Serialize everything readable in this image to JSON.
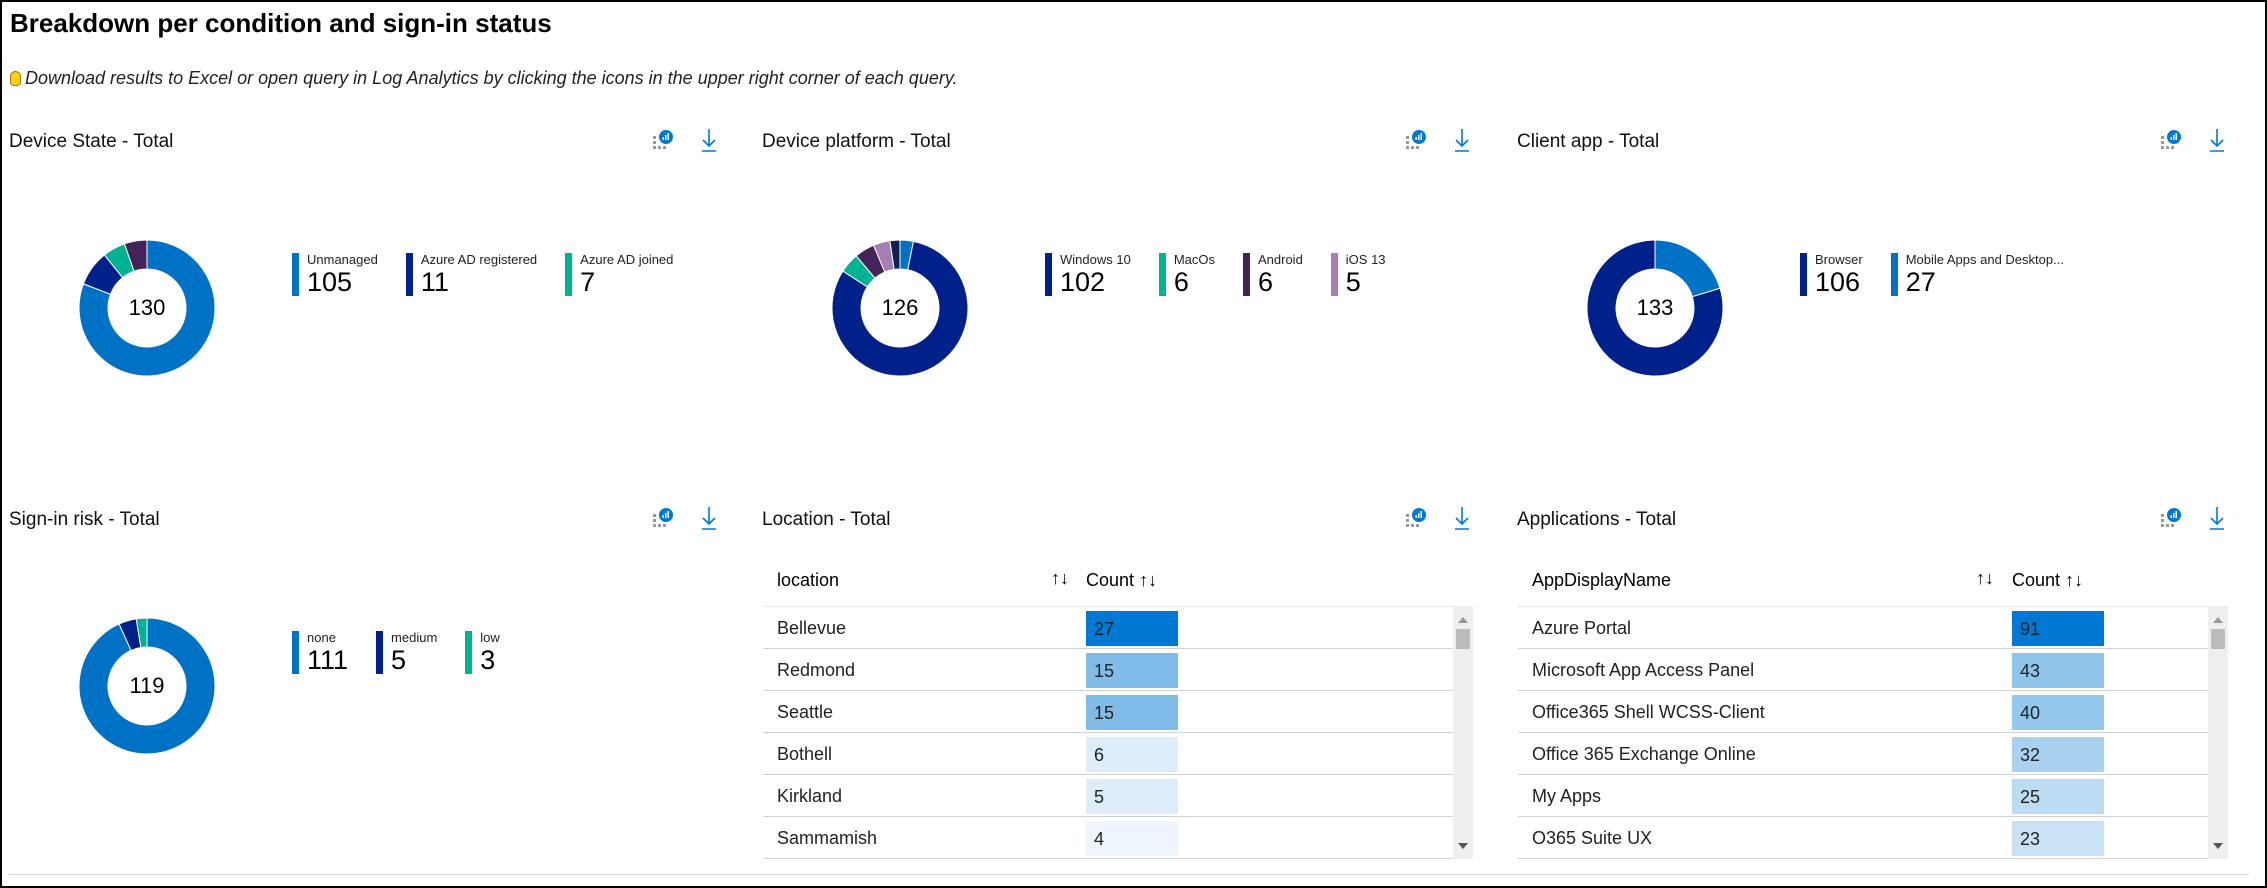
{
  "page": {
    "title": "Breakdown per condition and sign-in status",
    "hint": "Download results to Excel or open query in Log Analytics by clicking the icons in the upper right corner of each query.",
    "hint_icon": "lightbulb-icon"
  },
  "colors": {
    "blue": "#0072c6",
    "navy": "#00208a",
    "teal": "#00b294",
    "purple": "#442359",
    "lavender": "#a47eb4",
    "darknavy": "#0b2150",
    "accent": "#0078d4"
  },
  "panels": {
    "device_state": {
      "title": "Device State - Total",
      "total": "130",
      "legend": [
        {
          "label": "Unmanaged",
          "value": "105",
          "color": "#0072c6"
        },
        {
          "label": "Azure AD registered",
          "value": "11",
          "color": "#00208a"
        },
        {
          "label": "Azure AD joined",
          "value": "7",
          "color": "#00b294"
        }
      ]
    },
    "device_platform": {
      "title": "Device platform - Total",
      "total": "126",
      "legend": [
        {
          "label": "Windows 10",
          "value": "102",
          "color": "#00208a"
        },
        {
          "label": "MacOs",
          "value": "6",
          "color": "#00b294"
        },
        {
          "label": "Android",
          "value": "6",
          "color": "#442359"
        },
        {
          "label": "iOS 13",
          "value": "5",
          "color": "#a47eb4"
        }
      ]
    },
    "client_app": {
      "title": "Client app - Total",
      "total": "133",
      "legend": [
        {
          "label": "Browser",
          "value": "106",
          "color": "#00208a"
        },
        {
          "label": "Mobile Apps and Desktop...",
          "value": "27",
          "color": "#0072c6"
        }
      ]
    },
    "signin_risk": {
      "title": "Sign-in risk - Total",
      "total": "119",
      "legend": [
        {
          "label": "none",
          "value": "111",
          "color": "#0072c6"
        },
        {
          "label": "medium",
          "value": "5",
          "color": "#00208a"
        },
        {
          "label": "low",
          "value": "3",
          "color": "#00b294"
        }
      ]
    },
    "location": {
      "title": "Location - Total",
      "columns": [
        "location",
        "Count"
      ],
      "rows": [
        {
          "name": "Bellevue",
          "count": "27",
          "shade": "#0078d4"
        },
        {
          "name": "Redmond",
          "count": "15",
          "shade": "#7fbde8"
        },
        {
          "name": "Seattle",
          "count": "15",
          "shade": "#7fbde8"
        },
        {
          "name": "Bothell",
          "count": "6",
          "shade": "#deedfa"
        },
        {
          "name": "Kirkland",
          "count": "5",
          "shade": "#deedfa"
        },
        {
          "name": "Sammamish",
          "count": "4",
          "shade": "#eef5fc"
        }
      ]
    },
    "applications": {
      "title": "Applications - Total",
      "columns": [
        "AppDisplayName",
        "Count"
      ],
      "rows": [
        {
          "name": "Azure Portal",
          "count": "91",
          "shade": "#0078d4"
        },
        {
          "name": "Microsoft App Access Panel",
          "count": "43",
          "shade": "#8fc5ea"
        },
        {
          "name": "Office365 Shell WCSS-Client",
          "count": "40",
          "shade": "#93c7eb"
        },
        {
          "name": "Office 365 Exchange Online",
          "count": "32",
          "shade": "#a8d2f0"
        },
        {
          "name": "My Apps",
          "count": "25",
          "shade": "#bcdcf3"
        },
        {
          "name": "O365 Suite UX",
          "count": "23",
          "shade": "#c9e2f5"
        }
      ]
    }
  },
  "sort_icon": "↑↓",
  "chart_data": [
    {
      "type": "pie",
      "title": "Device State - Total",
      "total": 130,
      "segments": [
        {
          "name": "Unmanaged",
          "value": 105,
          "color": "#0072c6"
        },
        {
          "name": "Azure AD registered",
          "value": 11,
          "color": "#00208a"
        },
        {
          "name": "Azure AD joined",
          "value": 7,
          "color": "#00b294"
        },
        {
          "value": 7,
          "color": "#442359"
        }
      ]
    },
    {
      "type": "pie",
      "title": "Device platform - Total",
      "total": 126,
      "segments": [
        {
          "value": 4,
          "color": "#0072c6"
        },
        {
          "name": "Windows 10",
          "value": 102,
          "color": "#00208a"
        },
        {
          "name": "MacOs",
          "value": 6,
          "color": "#00b294"
        },
        {
          "name": "Android",
          "value": 6,
          "color": "#442359"
        },
        {
          "name": "iOS 13",
          "value": 5,
          "color": "#a47eb4"
        },
        {
          "value": 3,
          "color": "#0b2150"
        }
      ]
    },
    {
      "type": "pie",
      "title": "Client app - Total",
      "total": 133,
      "segments": [
        {
          "name": "Mobile Apps and Desktop...",
          "value": 27,
          "color": "#0072c6"
        },
        {
          "name": "Browser",
          "value": 106,
          "color": "#00208a"
        }
      ]
    },
    {
      "type": "pie",
      "title": "Sign-in risk - Total",
      "total": 119,
      "segments": [
        {
          "name": "none",
          "value": 111,
          "color": "#0072c6"
        },
        {
          "name": "medium",
          "value": 5,
          "color": "#00208a"
        },
        {
          "name": "low",
          "value": 3,
          "color": "#00b294"
        }
      ]
    }
  ]
}
